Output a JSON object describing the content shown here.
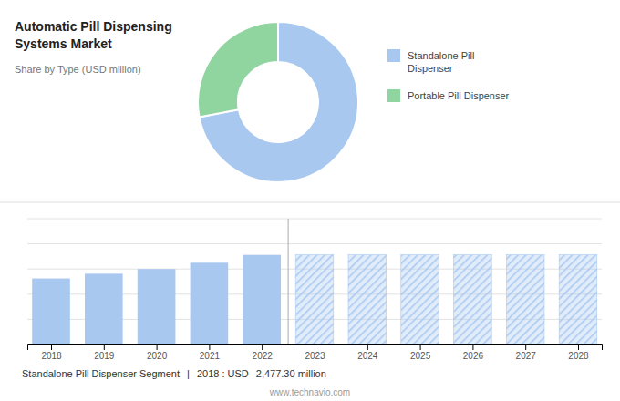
{
  "chart_data": [
    {
      "type": "donut",
      "title": "Automatic Pill Dispensing\nSystems Market",
      "subtitle": "Share by Type (USD million)",
      "categories": [
        "Standalone Pill\nDispenser",
        "Portable Pill Dispenser"
      ],
      "values": [
        72,
        28
      ],
      "colors": [
        "#a8c8f0",
        "#90d4a0"
      ],
      "legend": "right",
      "annotations": [
        "Standalone Pill Dispenser Segment",
        "|",
        "2018 : USD ",
        "2,477.30 million",
        "www.technavio.com"
      ]
    },
    {
      "type": "bar",
      "x": [
        2018,
        2019,
        2020,
        2021,
        2022,
        2023,
        2024,
        2025,
        2026,
        2027,
        2028
      ],
      "series": [
        {
          "color": "#a8c8f0",
          "values": [
            42,
            45,
            48,
            52,
            57,
            null,
            null,
            null,
            null,
            null,
            null
          ]
        },
        {
          "color": "#a8c8f0",
          "values": [
            null,
            null,
            null,
            null,
            null,
            57,
            57,
            57,
            57,
            57,
            57
          ]
        }
      ],
      "xlim": [
        2017.55,
        2028.45
      ],
      "xticks": [
        2018,
        2019,
        2020,
        2021,
        2022,
        2023,
        2024,
        2025,
        2026,
        2027,
        2028
      ],
      "ylim": [
        0,
        80
      ],
      "yticks": [
        0,
        16,
        32,
        48,
        64,
        80
      ],
      "grid": true,
      "tick_labels": "x"
    }
  ]
}
